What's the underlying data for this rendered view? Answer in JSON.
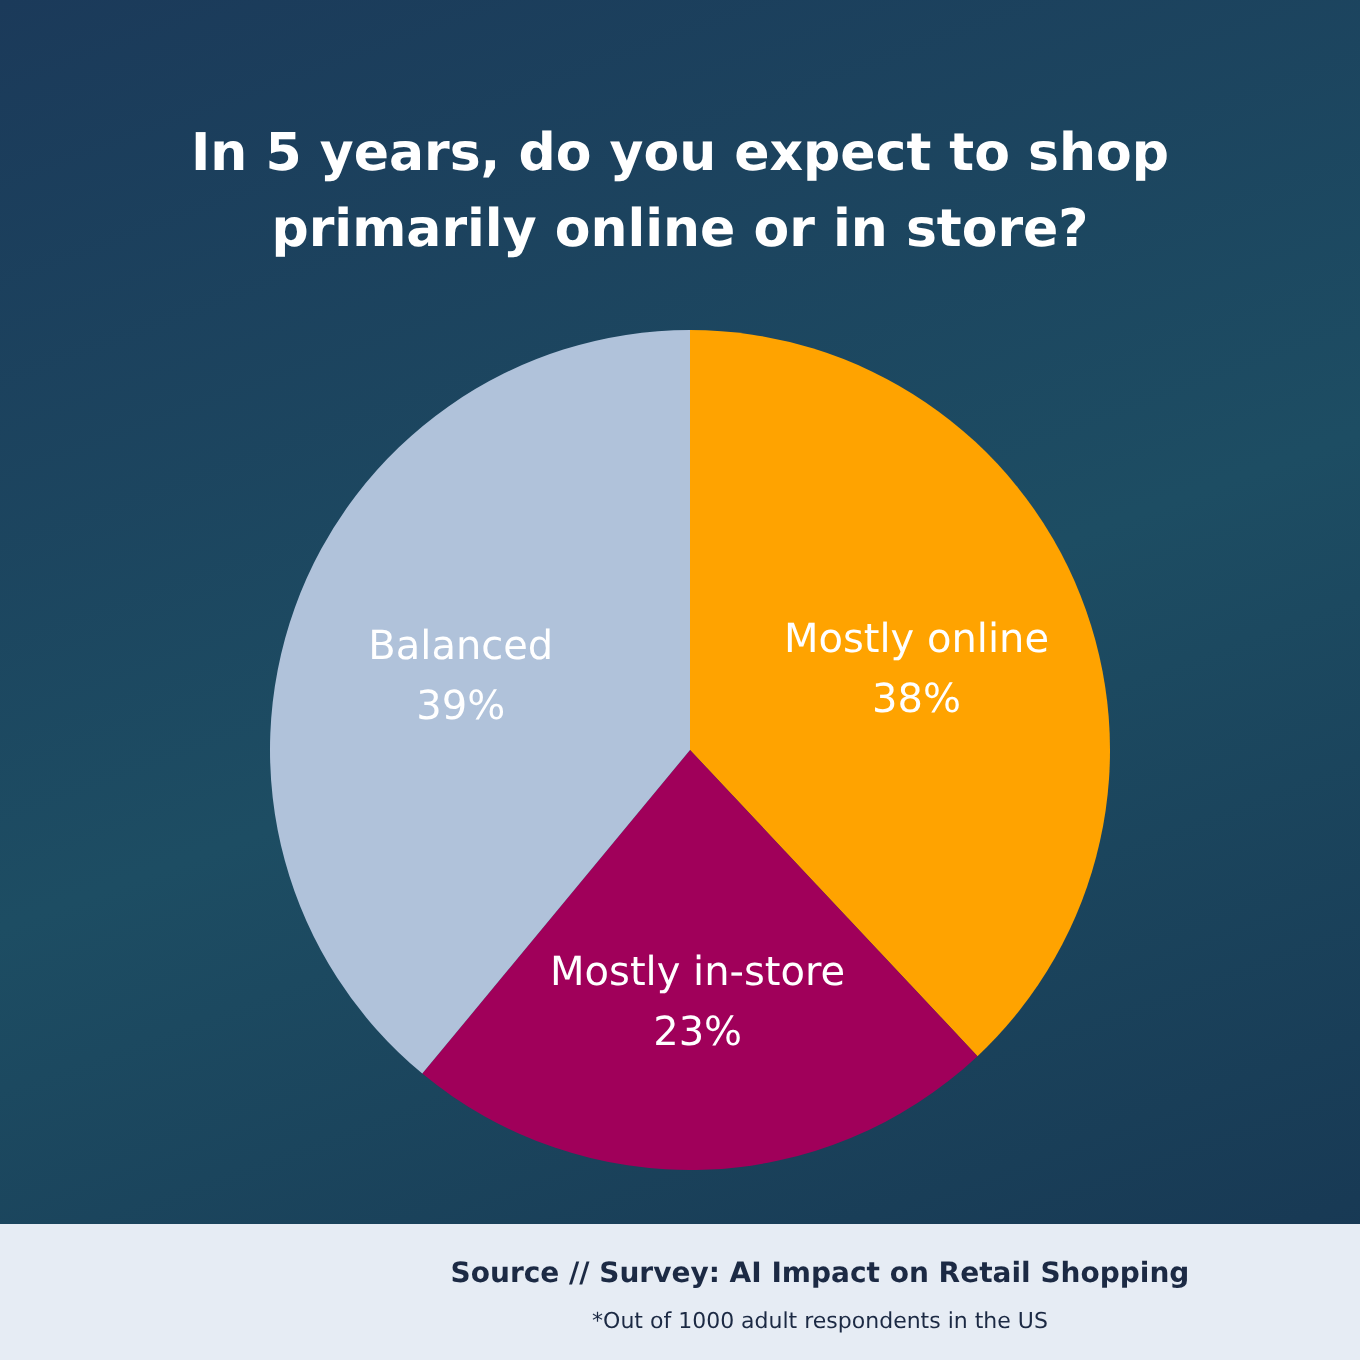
{
  "chart_data": {
    "type": "pie",
    "title": "In 5 years, do you expect to shop primarily online or in store?",
    "categories": [
      "Mostly online",
      "Mostly in-store",
      "Balanced"
    ],
    "values": [
      38,
      23,
      39
    ],
    "value_labels": [
      "38%",
      "23%",
      "39%"
    ],
    "colors": [
      "#ffa300",
      "#a0005a",
      "#b0c2da"
    ],
    "annotations": [
      "Source // Survey: AI Impact on Retail Shopping",
      "*Out of 1000 adult respondents in the US"
    ]
  }
}
